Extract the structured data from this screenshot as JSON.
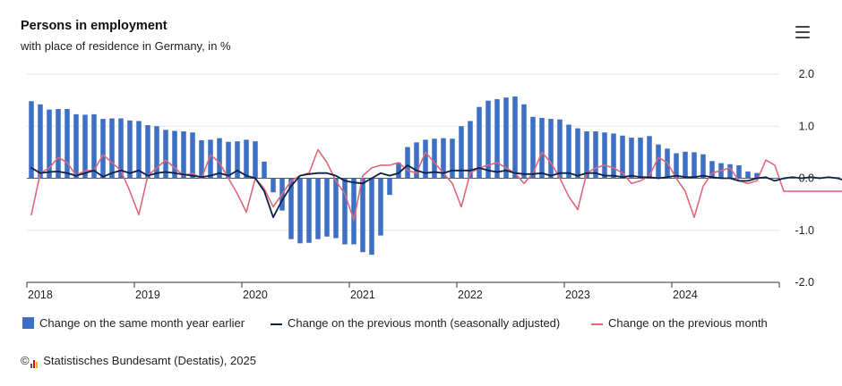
{
  "header": {
    "title": "Persons in employment",
    "subtitle": "with place of residence in Germany, in %"
  },
  "menu": {
    "icon": "hamburger-menu-icon"
  },
  "source": {
    "copyright": "©",
    "logo": "destatis-logo",
    "text": "Statistisches Bundesamt (Destatis), 2025"
  },
  "colors": {
    "bar": "#3d6fc4",
    "sa_line": "#0c2246",
    "raw_line": "#e06878",
    "grid": "#e6e6e6",
    "axis": "#333333"
  },
  "chart_data": {
    "type": "bar+line",
    "title": "Persons in employment",
    "subtitle": "with place of residence in Germany, in %",
    "x_labels": [
      "2018",
      "2019",
      "2020",
      "2021",
      "2022",
      "2023",
      "2024"
    ],
    "y_ticks": [
      "2.0",
      "1.0",
      "0.0",
      "-1.0",
      "-2.0"
    ],
    "ylim": [
      -2.0,
      2.0
    ],
    "start": "2018-01",
    "months": 84,
    "series": [
      {
        "name": "Change on the same month year earlier",
        "kind": "bar",
        "values": [
          1.48,
          1.42,
          1.32,
          1.33,
          1.33,
          1.23,
          1.22,
          1.23,
          1.14,
          1.15,
          1.15,
          1.11,
          1.1,
          1.02,
          1.0,
          0.93,
          0.91,
          0.9,
          0.88,
          0.73,
          0.74,
          0.77,
          0.7,
          0.71,
          0.74,
          0.71,
          0.32,
          -0.27,
          -0.62,
          -1.17,
          -1.25,
          -1.24,
          -1.17,
          -1.12,
          -1.15,
          -1.27,
          -1.27,
          -1.42,
          -1.47,
          -1.1,
          -0.32,
          0.3,
          0.6,
          0.69,
          0.74,
          0.76,
          0.77,
          0.76,
          1.0,
          1.1,
          1.37,
          1.49,
          1.52,
          1.55,
          1.57,
          1.42,
          1.18,
          1.16,
          1.14,
          1.13,
          1.03,
          0.96,
          0.9,
          0.9,
          0.88,
          0.86,
          0.82,
          0.78,
          0.78,
          0.81,
          0.65,
          0.57,
          0.48,
          0.51,
          0.5,
          0.46,
          0.33,
          0.29,
          0.27,
          0.25,
          0.13,
          0.1,
          0.0,
          0.0,
          -0.02,
          0.0,
          0.01,
          0.02,
          0.02,
          0.02,
          0.02,
          -0.02
        ]
      },
      {
        "name": "Change on the previous month (seasonally adjusted)",
        "kind": "line",
        "values": [
          0.2,
          0.1,
          0.12,
          0.13,
          0.1,
          0.05,
          0.1,
          0.15,
          0.03,
          0.1,
          0.15,
          0.1,
          0.15,
          0.05,
          0.1,
          0.12,
          0.1,
          0.07,
          0.05,
          0.02,
          0.05,
          0.1,
          0.05,
          0.15,
          0.05,
          0.0,
          -0.25,
          -0.75,
          -0.42,
          -0.15,
          0.05,
          0.08,
          0.1,
          0.1,
          0.05,
          -0.05,
          -0.08,
          -0.1,
          0.0,
          0.1,
          0.05,
          0.1,
          0.25,
          0.15,
          0.1,
          0.12,
          0.1,
          0.15,
          0.15,
          0.15,
          0.2,
          0.15,
          0.12,
          0.15,
          0.1,
          0.08,
          0.08,
          0.1,
          0.05,
          0.1,
          0.1,
          0.05,
          0.1,
          0.1,
          0.05,
          0.05,
          0.02,
          0.05,
          0.02,
          0.02,
          0.0,
          0.02,
          0.05,
          0.02,
          0.02,
          0.05,
          0.02,
          0.0,
          0.0,
          -0.05,
          -0.05,
          0.0,
          0.02,
          -0.05,
          0.0,
          0.02,
          0.0,
          0.02,
          0.0,
          0.02,
          0.0,
          -0.05
        ]
      },
      {
        "name": "Change on the previous month",
        "kind": "line",
        "values": [
          -0.7,
          0.1,
          0.2,
          0.4,
          0.3,
          0.05,
          0.15,
          0.15,
          0.45,
          0.3,
          0.15,
          -0.25,
          -0.7,
          0.05,
          0.2,
          0.35,
          0.2,
          0.05,
          0.1,
          0.0,
          0.45,
          0.3,
          0.0,
          -0.3,
          -0.65,
          0.0,
          -0.2,
          -0.55,
          -0.3,
          -0.05,
          0.05,
          0.1,
          0.55,
          0.3,
          -0.05,
          -0.3,
          -0.8,
          0.05,
          0.2,
          0.25,
          0.25,
          0.3,
          0.15,
          0.1,
          0.5,
          0.3,
          0.1,
          -0.1,
          -0.55,
          0.1,
          0.2,
          0.25,
          0.3,
          0.2,
          0.1,
          -0.1,
          0.1,
          0.5,
          0.3,
          0.0,
          -0.35,
          -0.6,
          0.1,
          0.2,
          0.25,
          0.2,
          0.1,
          -0.1,
          -0.05,
          0.05,
          0.4,
          0.3,
          0.0,
          -0.25,
          -0.75,
          -0.15,
          0.1,
          0.15,
          0.2,
          -0.05,
          -0.1,
          -0.05,
          0.35,
          0.25,
          -0.25,
          -0.25,
          -0.25,
          -0.25,
          -0.25,
          -0.25,
          -0.25,
          -0.25
        ]
      }
    ]
  },
  "legend": {
    "items": [
      {
        "label": "Change on the same month year earlier",
        "symbol": "bar"
      },
      {
        "label": "Change on the previous month (seasonally adjusted)",
        "symbol": "line-dark"
      },
      {
        "label": "Change on the previous month",
        "symbol": "line-pink"
      }
    ]
  }
}
